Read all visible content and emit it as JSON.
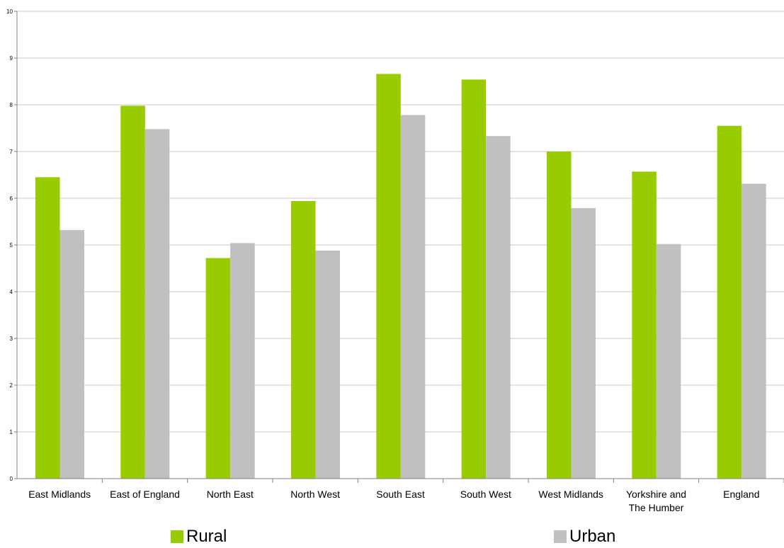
{
  "chart_data": {
    "type": "bar",
    "categories": [
      "East Midlands",
      "East of England",
      "North East",
      "North West",
      "South East",
      "South West",
      "West Midlands",
      "Yorkshire and The Humber",
      "England"
    ],
    "series": [
      {
        "name": "Rural",
        "color": "#99cc00",
        "values": [
          6.45,
          7.98,
          4.72,
          5.94,
          8.66,
          8.54,
          7.0,
          6.57,
          7.55
        ]
      },
      {
        "name": "Urban",
        "color": "#c0c0c0",
        "values": [
          5.32,
          7.48,
          5.04,
          4.88,
          7.78,
          7.33,
          5.79,
          5.02,
          6.31
        ]
      }
    ],
    "ylim": [
      0,
      10
    ],
    "yticks": [
      "0",
      "1",
      "2",
      "3",
      "4",
      "5",
      "6",
      "7",
      "8",
      "9",
      "10"
    ],
    "grid": true,
    "legend_position": "bottom",
    "title": "",
    "xlabel": "",
    "ylabel": ""
  }
}
